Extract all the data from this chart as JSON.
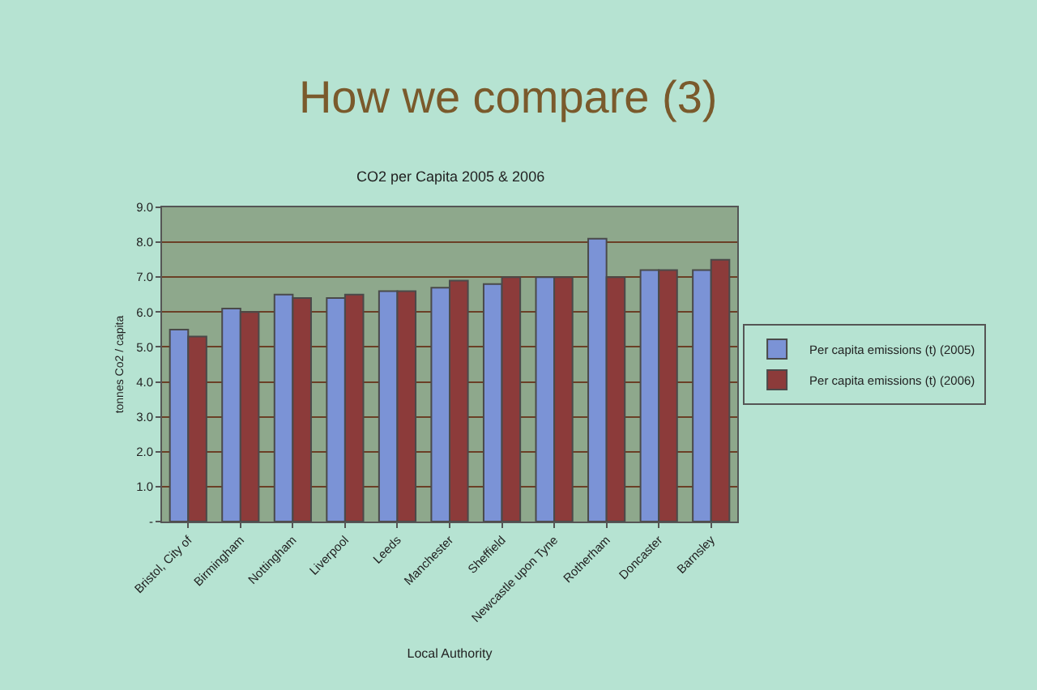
{
  "chart_data": {
    "type": "bar",
    "title": "How we compare (3)",
    "subtitle": "CO2 per Capita 2005 & 2006",
    "xlabel": "Local Authority",
    "ylabel": "tonnes Co2 / capita",
    "categories": [
      "Bristol, City of",
      "Birmingham",
      "Nottingham",
      "Liverpool",
      "Leeds",
      "Manchester",
      "Sheffield",
      "Newcastle upon Tyne",
      "Rotherham",
      "Doncaster",
      "Barnsley"
    ],
    "series": [
      {
        "name": "Per capita emissions (t) (2005)",
        "color": "#7b93d6",
        "values": [
          5.5,
          6.1,
          6.5,
          6.4,
          6.6,
          6.7,
          6.8,
          7.0,
          8.1,
          7.2,
          7.2
        ]
      },
      {
        "name": "Per capita emissions (t) (2006)",
        "color": "#8c3b3a",
        "values": [
          5.3,
          6.0,
          6.4,
          6.5,
          6.6,
          6.9,
          7.0,
          7.0,
          7.0,
          7.2,
          7.5
        ]
      }
    ],
    "ylim": [
      0,
      9
    ],
    "yticks": [
      {
        "value": 0,
        "label": "-"
      },
      {
        "value": 1,
        "label": "1.0"
      },
      {
        "value": 2,
        "label": "2.0"
      },
      {
        "value": 3,
        "label": "3.0"
      },
      {
        "value": 4,
        "label": "4.0"
      },
      {
        "value": 5,
        "label": "5.0"
      },
      {
        "value": 6,
        "label": "6.0"
      },
      {
        "value": 7,
        "label": "7.0"
      },
      {
        "value": 8,
        "label": "8.0"
      },
      {
        "value": 9,
        "label": "9.0"
      }
    ],
    "grid": "y",
    "legend": "right"
  }
}
